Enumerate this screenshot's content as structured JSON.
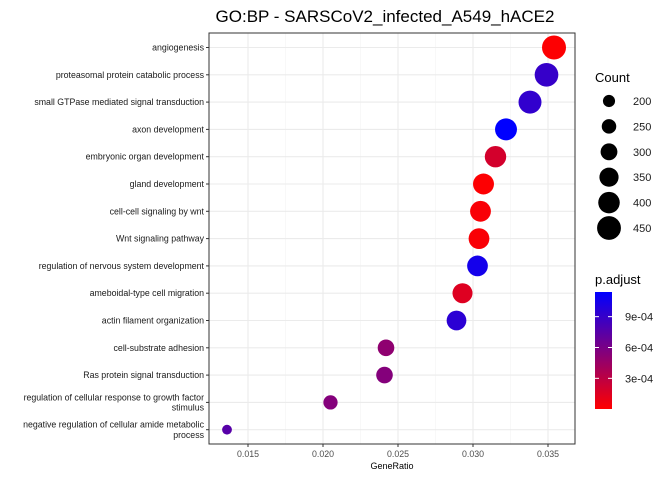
{
  "chart_data": {
    "type": "scatter",
    "title": "GO:BP - SARSCoV2_infected_A549_hACE2",
    "xlabel": "GeneRatio",
    "ylabel": "",
    "xlim": [
      0.0124,
      0.0368
    ],
    "xticks": [
      0.015,
      0.02,
      0.025,
      0.03,
      0.035
    ],
    "xtick_labels": [
      "0.015",
      "0.020",
      "0.025",
      "0.030",
      "0.035"
    ],
    "grid": true,
    "categories": [
      "angiogenesis",
      "proteasomal protein catabolic process",
      "small GTPase mediated signal transduction",
      "axon development",
      "embryonic organ development",
      "gland development",
      "cell-cell signaling by wnt",
      "Wnt signaling pathway",
      "regulation of nervous system development",
      "ameboidal-type cell migration",
      "actin filament organization",
      "cell-substrate adhesion",
      "Ras protein signal transduction",
      "regulation of cellular response to growth factor stimulus",
      "negative regulation of cellular amide metabolic process"
    ],
    "category_lines": [
      [
        "angiogenesis"
      ],
      [
        "proteasomal protein catabolic process"
      ],
      [
        "small GTPase mediated signal transduction"
      ],
      [
        "axon development"
      ],
      [
        "embryonic organ development"
      ],
      [
        "gland development"
      ],
      [
        "cell-cell signaling by wnt"
      ],
      [
        "Wnt signaling pathway"
      ],
      [
        "regulation of nervous system development"
      ],
      [
        "ameboidal-type cell migration"
      ],
      [
        "actin filament organization"
      ],
      [
        "cell-substrate adhesion"
      ],
      [
        "Ras protein signal transduction"
      ],
      [
        "regulation of cellular response to growth factor",
        "stimulus"
      ],
      [
        "negative regulation of cellular amide metabolic",
        "process"
      ]
    ],
    "gene_ratio": [
      0.0354,
      0.0349,
      0.0338,
      0.0322,
      0.0315,
      0.0307,
      0.0305,
      0.0304,
      0.0303,
      0.0293,
      0.0289,
      0.0242,
      0.0241,
      0.0205,
      0.0136
    ],
    "count": [
      453,
      446,
      431,
      409,
      398,
      388,
      385,
      384,
      383,
      368,
      362,
      296,
      295,
      245,
      150
    ],
    "p_adjust": [
      1e-05,
      0.0009,
      0.00092,
      0.0013,
      0.0002,
      1e-05,
      3e-05,
      3e-05,
      0.00105,
      0.00015,
      0.00095,
      0.0005,
      0.00055,
      0.00055,
      0.00075
    ],
    "legend_count": {
      "title": "Count",
      "values": [
        200,
        250,
        300,
        350,
        400,
        450
      ],
      "labels": [
        "200",
        "250",
        "300",
        "350",
        "400",
        "450"
      ]
    },
    "legend_padjust": {
      "title": "p.adjust",
      "min": 1.5e-06,
      "max": 0.00114,
      "ticks": [
        0.0003,
        0.0006,
        0.0009
      ],
      "tick_labels": [
        "3e-04",
        "6e-04",
        "9e-04"
      ],
      "low_color": "#FF0000",
      "high_color": "#0000FF"
    },
    "panel_background": "#FFFFFF",
    "grid_color": "#EBEBEB"
  }
}
